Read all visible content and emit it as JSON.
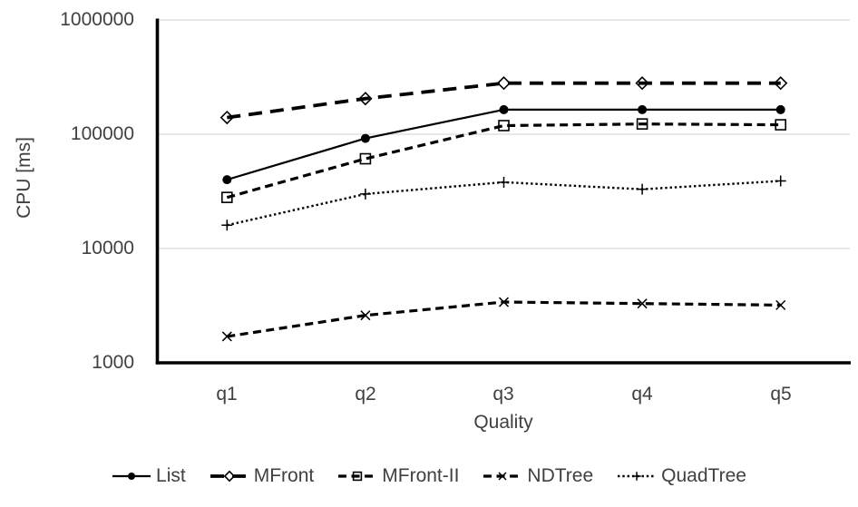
{
  "chart_data": {
    "type": "line",
    "title": "",
    "xlabel": "Quality",
    "ylabel": "CPU [ms]",
    "y_scale": "log",
    "ylim": [
      1000,
      1000000
    ],
    "y_ticks": [
      "1000000",
      "100000",
      "10000",
      "1000"
    ],
    "grid": "horizontal",
    "legend_position": "bottom",
    "categories": [
      "q1",
      "q2",
      "q3",
      "q4",
      "q5"
    ],
    "series": [
      {
        "name": "List",
        "marker": "filled-circle",
        "line": "solid",
        "values": [
          40000,
          92000,
          164000,
          164000,
          164000
        ]
      },
      {
        "name": "MFront",
        "marker": "open-diamond",
        "line": "long-dash",
        "values": [
          140000,
          205000,
          280000,
          280000,
          280000
        ]
      },
      {
        "name": "MFront-II",
        "marker": "open-square",
        "line": "dash",
        "values": [
          28000,
          61000,
          119000,
          123000,
          121000
        ]
      },
      {
        "name": "NDTree",
        "marker": "x",
        "line": "dash",
        "values": [
          1700,
          2600,
          3400,
          3300,
          3200
        ]
      },
      {
        "name": "QuadTree",
        "marker": "plus",
        "line": "dot",
        "values": [
          16000,
          30000,
          38000,
          33000,
          39000
        ]
      }
    ],
    "colors": {
      "line": "#000000",
      "text": "#404040",
      "grid": "#d9d9d9"
    }
  }
}
